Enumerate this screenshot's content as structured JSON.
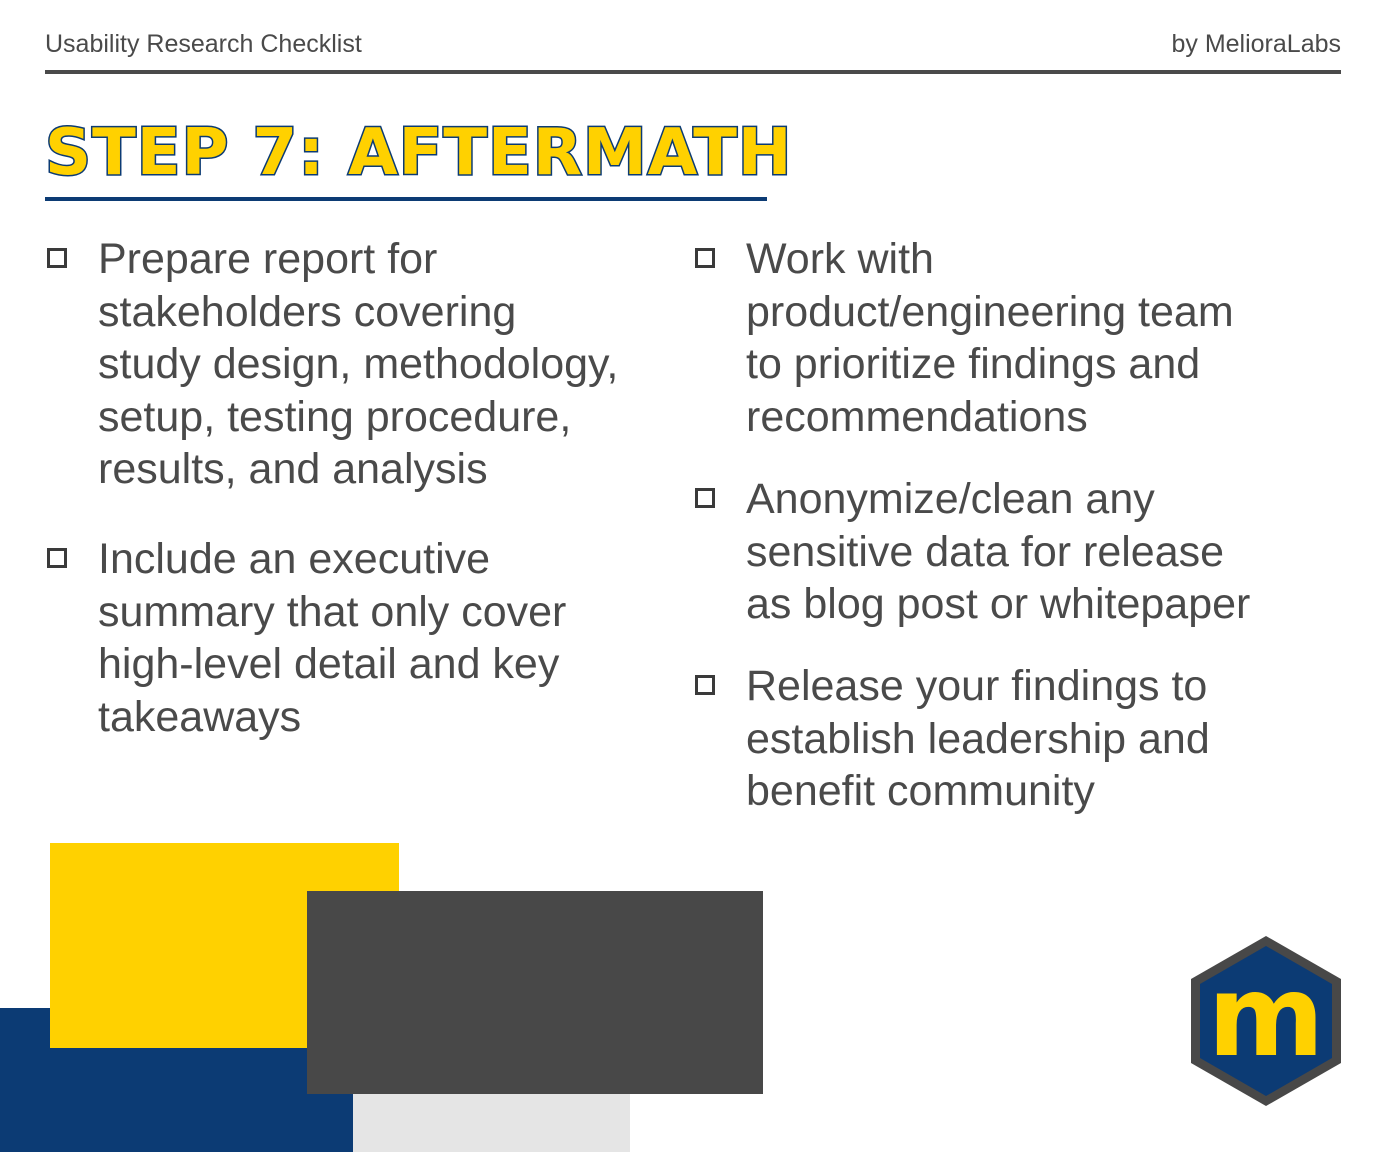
{
  "header": {
    "title": "Usability Research Checklist",
    "byline": "by MelioraLabs"
  },
  "step_title": "STEP 7: AFTERMATH",
  "left_items": [
    {
      "lines": [
        "Prepare report for",
        "stakeholders covering",
        "study design, methodology,",
        "setup, testing procedure,",
        "results, and analysis"
      ],
      "checked": false
    },
    {
      "lines": [
        "Include an executive",
        "summary that only cover",
        "high-level detail and key",
        "takeaways"
      ],
      "checked": false
    }
  ],
  "right_items": [
    {
      "lines": [
        "Work with",
        "product/engineering team",
        "to prioritize findings and",
        "recommendations"
      ],
      "checked": false
    },
    {
      "lines": [
        "Anonymize/clean any",
        "sensitive data for release",
        "as blog post or whitepaper"
      ],
      "checked": false
    },
    {
      "lines": [
        "Release your findings to",
        "establish leadership and",
        "benefit community"
      ],
      "checked": false
    }
  ],
  "logo": {
    "letter": "m",
    "icon": "meliora-hexagon-logo"
  },
  "colors": {
    "navy": "#0c3b74",
    "yellow": "#ffd100",
    "dark_gray": "#484848",
    "light_gray": "#e5e5e5",
    "text": "#4a4a4a"
  }
}
